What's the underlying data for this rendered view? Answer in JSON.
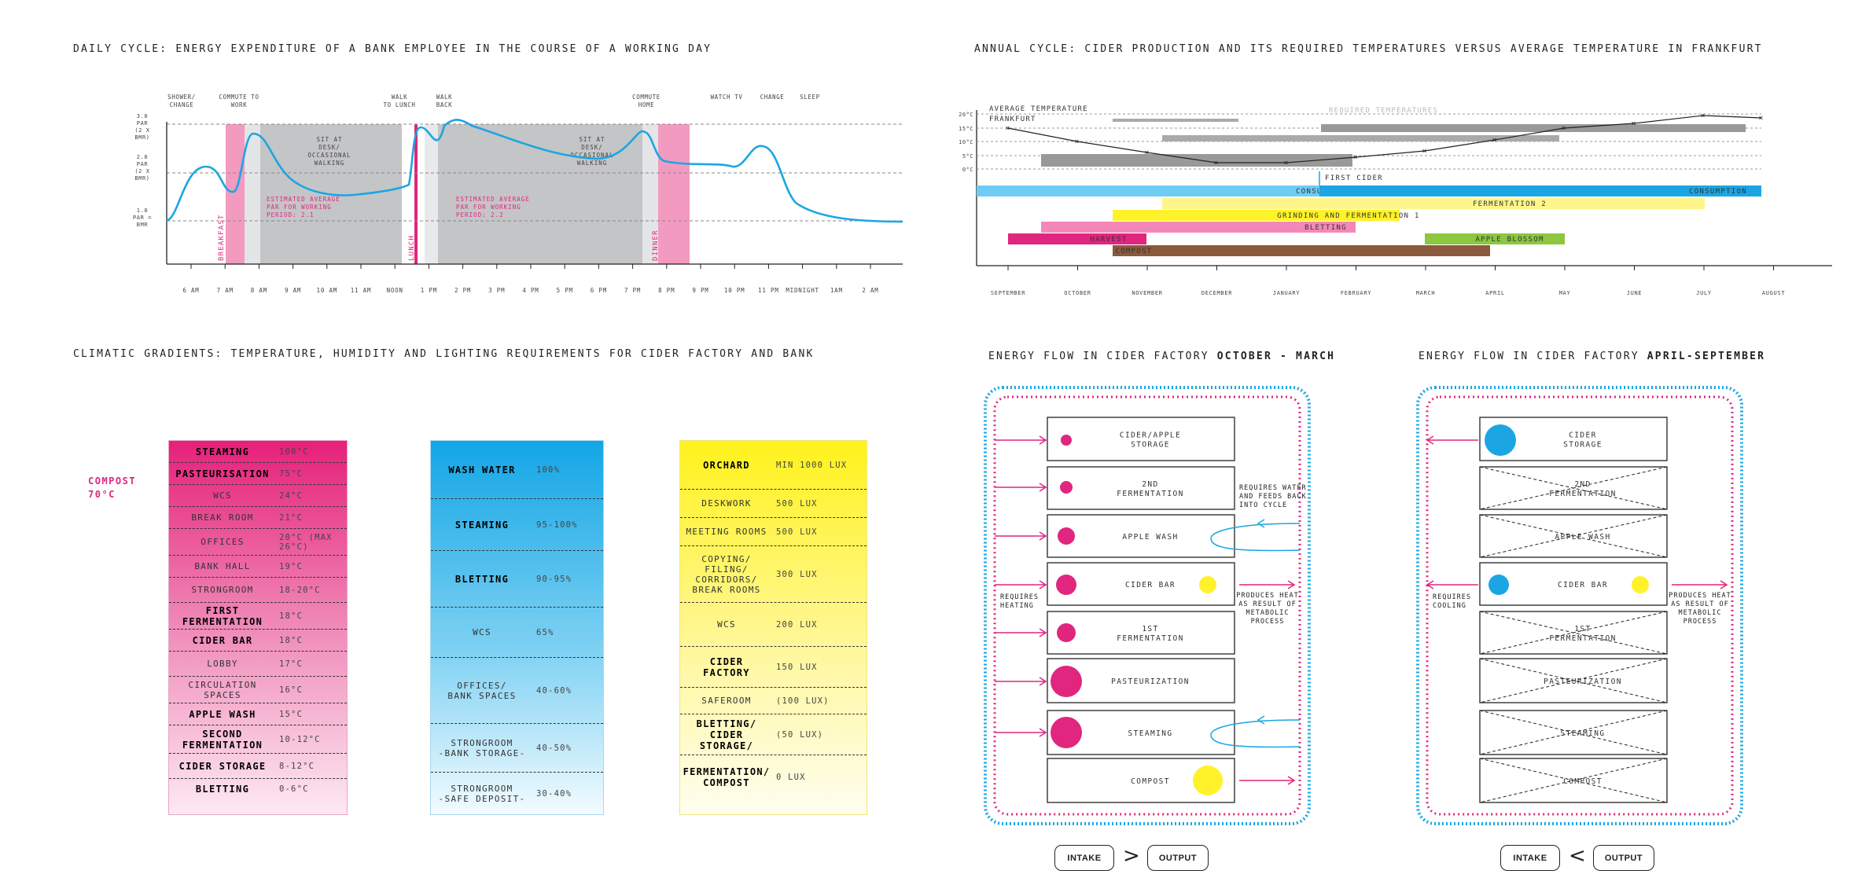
{
  "titles": {
    "daily": "DAILY CYCLE: ENERGY EXPENDITURE OF A BANK EMPLOYEE IN THE COURSE OF A WORKING DAY",
    "annual": "ANNUAL CYCLE: CIDER PRODUCTION AND ITS REQUIRED TEMPERATURES VERSUS AVERAGE TEMPERATURE IN FRANKFURT",
    "climatic": "CLIMATIC GRADIENTS: TEMPERATURE, HUMIDITY AND LIGHTING REQUIREMENTS FOR CIDER FACTORY AND BANK",
    "flow1_prefix": "ENERGY FLOW IN CIDER FACTORY ",
    "flow1_bold": "OCTOBER - MARCH",
    "flow2_prefix": "ENERGY FLOW IN CIDER FACTORY ",
    "flow2_bold": "APRIL-SEPTEMBER"
  },
  "colors": {
    "pink": "#e0267f",
    "cyan": "#1ba6e3",
    "yellow": "#fff22a",
    "grey": "#c4c5c7",
    "lightpink": "#f39ac0"
  },
  "daily": {
    "top_labels": [
      "SHOWER/\nCHANGE",
      "COMMUTE TO\nWORK",
      "WALK\nTO LUNCH",
      "WALK\nBACK",
      "COMMUTE\nHOME",
      "WATCH TV",
      "CHANGE",
      "SLEEP"
    ],
    "y_labels": [
      "3.0\nPAR\n(2 X\nBMR)",
      "2.0\nPAR\n(2 X\nBMR)",
      "1.0\nPAR =\nBMR"
    ],
    "x_ticks": [
      "6 AM",
      "7 AM",
      "8 AM",
      "9 AM",
      "10 AM",
      "11 AM",
      "NOON",
      "1 PM",
      "2 PM",
      "3 PM",
      "4 PM",
      "5 PM",
      "6 PM",
      "7 PM",
      "8 PM",
      "9 PM",
      "10 PM",
      "11 PM",
      "MIDNIGHT",
      "1AM",
      "2 AM"
    ],
    "block_text_1": "SIT AT\nDESK/\nOCCASIONAL\nWALKING",
    "block_text_2": "SIT AT\nDESK/\nOCCASIONAL\nWALKING",
    "est_1": "ESTIMATED AVERAGE\nPAR FOR WORKING\nPERIOD: 2.1",
    "est_2": "ESTIMATED AVERAGE\nPAR FOR WORKING\nPERIOD: 2.2",
    "meals": [
      "BREAKFAST",
      "LUNCH",
      "DINNER"
    ]
  },
  "annual": {
    "y_ticks": [
      "20°C",
      "15°C",
      "10°C",
      "5°C",
      "0°C"
    ],
    "months": [
      "SEPTEMBER",
      "OCTOBER",
      "NOVEMBER",
      "DECEMBER",
      "JANUARY",
      "FEBRUARY",
      "MARCH",
      "APRIL",
      "MAY",
      "JUNE",
      "JULY",
      "AUGUST"
    ],
    "avg_label": "AVERAGE TEMPERATURE\nFRANKFURT",
    "req_label": "REQUIRED TEMPERATURES",
    "first_cider": "FIRST CIDER",
    "bars": [
      "CONSUMPTION",
      "CONSUMPTION",
      "FERMENTATION 2",
      "GRINDING AND FERMENTATION 1",
      "BLETTING",
      "HARVEST",
      "APPLE BLOSSOM",
      "COMPOST"
    ]
  },
  "compost_note": "COMPOST\n70°C",
  "temp_table": [
    {
      "label": "STEAMING",
      "value": "100°C",
      "bold": true
    },
    {
      "label": "PASTEURISATION",
      "value": "75°C",
      "bold": true
    },
    {
      "label": "WCS",
      "value": "24°C",
      "bold": false
    },
    {
      "label": "BREAK ROOM",
      "value": "21°C",
      "bold": false
    },
    {
      "label": "OFFICES",
      "value": "20°C (MAX\n26°C)",
      "bold": false
    },
    {
      "label": "BANK HALL",
      "value": "19°C",
      "bold": false
    },
    {
      "label": "STRONGROOM",
      "value": "18-20°C",
      "bold": false
    },
    {
      "label": "FIRST\nFERMENTATION",
      "value": "18°C",
      "bold": true
    },
    {
      "label": "CIDER BAR",
      "value": "18°C",
      "bold": true
    },
    {
      "label": "LOBBY",
      "value": "17°C",
      "bold": false
    },
    {
      "label": "CIRCULATION\nSPACES",
      "value": "16°C",
      "bold": false
    },
    {
      "label": "APPLE WASH",
      "value": "15°C",
      "bold": true
    },
    {
      "label": "SECOND\nFERMENTATION",
      "value": "10-12°C",
      "bold": true
    },
    {
      "label": "CIDER STORAGE",
      "value": "8-12°C",
      "bold": true
    },
    {
      "label": "BLETTING",
      "value": "0-6°C",
      "bold": true
    }
  ],
  "humidity_table": [
    {
      "label": "WASH WATER",
      "value": "100%",
      "bold": true
    },
    {
      "label": "STEAMING",
      "value": "95-100%",
      "bold": true
    },
    {
      "label": "BLETTING",
      "value": "90-95%",
      "bold": true
    },
    {
      "label": "WCS",
      "value": "65%",
      "bold": false
    },
    {
      "label": "OFFICES/\nBANK SPACES",
      "value": "40-60%",
      "bold": false
    },
    {
      "label": "STRONGROOM\n-BANK STORAGE-",
      "value": "40-50%",
      "bold": false
    },
    {
      "label": "STRONGROOM\n-SAFE DEPOSIT-",
      "value": "30-40%",
      "bold": false
    }
  ],
  "light_table": [
    {
      "label": "ORCHARD",
      "value": "MIN 1000 LUX",
      "bold": true
    },
    {
      "label": "DESKWORK",
      "value": "500 LUX",
      "bold": false
    },
    {
      "label": "MEETING ROOMS",
      "value": "500 LUX",
      "bold": false
    },
    {
      "label": "COPYING/\nFILING/\nCORRIDORS/\nBREAK ROOMS",
      "value": "300 LUX",
      "bold": false
    },
    {
      "label": "WCS",
      "value": "200 LUX",
      "bold": false
    },
    {
      "label": "CIDER\nFACTORY",
      "value": "150 LUX",
      "bold": true
    },
    {
      "label": "SAFEROOM",
      "value": "(100 LUX)",
      "bold": false
    },
    {
      "label": "BLETTING/\nCIDER STORAGE/",
      "value": "(50 LUX)",
      "bold": true
    },
    {
      "label": "FERMENTATION/\nCOMPOST",
      "value": "0 LUX",
      "bold": true
    }
  ],
  "flow1": {
    "boxes": [
      "CIDER/APPLE\nSTORAGE",
      "2ND\nFERMENTATION",
      "APPLE WASH",
      "CIDER BAR",
      "1ST\nFERMENTATION",
      "PASTEURIZATION",
      "STEAMING",
      "COMPOST"
    ],
    "note_right_top": "REQUIRES WATER\nAND FEEDS BACK\nINTO CYCLE",
    "note_left": "REQUIRES\nHEATING",
    "note_right": "PRODUCES HEAT\nAS RESULT OF\nMETABOLIC\nPROCESS",
    "intake": "INTAKE",
    "symbol": ">",
    "output": "OUTPUT"
  },
  "flow2": {
    "boxes": [
      "CIDER\nSTORAGE",
      "2ND\nFERMENTATION",
      "APPLE WASH",
      "CIDER BAR",
      "1ST\nFERMENTATION",
      "PASTEURIZATION",
      "STEAMING",
      "COMPOST"
    ],
    "note_left": "REQUIRES\nCOOLING",
    "note_right": "PRODUCES HEAT\nAS RESULT OF\nMETABOLIC\nPROCESS",
    "intake": "INTAKE",
    "symbol": "<",
    "output": "OUTPUT"
  }
}
